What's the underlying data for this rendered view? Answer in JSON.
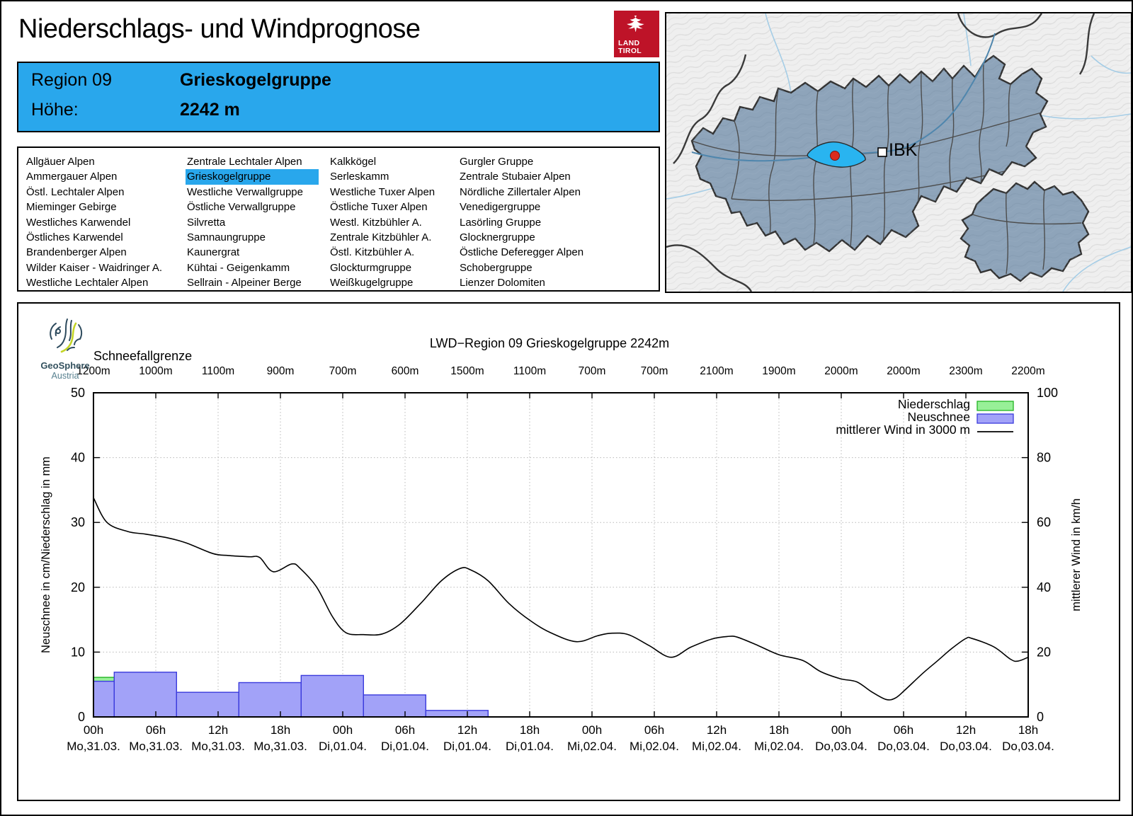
{
  "header": {
    "title": "Niederschlags- und Windprognose"
  },
  "logo": {
    "line1": "LAND",
    "line2": "TIROL"
  },
  "region_box": {
    "region_label": "Region 09",
    "region_name": "Grieskogelgruppe",
    "altitude_label": "Höhe:",
    "altitude_value": "2242 m"
  },
  "region_list": {
    "selected": "Grieskogelgruppe",
    "columns": [
      [
        "Allgäuer Alpen",
        "Ammergauer Alpen",
        "Östl. Lechtaler Alpen",
        "Mieminger Gebirge",
        "Westliches Karwendel",
        "Östliches Karwendel",
        "Brandenberger Alpen",
        "Wilder Kaiser - Waidringer A.",
        "Westliche Lechtaler Alpen"
      ],
      [
        "Zentrale Lechtaler Alpen",
        "Grieskogelgruppe",
        "Westliche Verwallgruppe",
        "Östliche Verwallgruppe",
        "Silvretta",
        "Samnaungruppe",
        "Kaunergrat",
        "Kühtai - Geigenkamm",
        "Sellrain - Alpeiner Berge"
      ],
      [
        "Kalkkögel",
        "Serleskamm",
        "Westliche Tuxer Alpen",
        "Östliche Tuxer Alpen",
        "Westl. Kitzbühler A.",
        "Zentrale Kitzbühler A.",
        "Östl. Kitzbühler A.",
        "Glockturmgruppe",
        "Weißkugelgruppe"
      ],
      [
        "Gurgler Gruppe",
        "Zentrale Stubaier Alpen",
        "Nördliche Zillertaler Alpen",
        "Venedigergruppe",
        "Lasörling Gruppe",
        "Glocknergruppe",
        "Östliche Deferegger Alpen",
        "Schobergruppe",
        "Lienzer Dolomiten"
      ]
    ]
  },
  "map": {
    "city_label": "IBK"
  },
  "geosphere": {
    "name": "GeoSphere",
    "country": "Austria"
  },
  "chart_data": {
    "type": "bar",
    "title": "LWD−Region 09 Grieskogelgruppe 2242m",
    "snowline": {
      "label": "Schneefallgrenze",
      "values": [
        "1200m",
        "1000m",
        "1100m",
        "900m",
        "700m",
        "600m",
        "1500m",
        "1100m",
        "700m",
        "700m",
        "2100m",
        "1900m",
        "2000m",
        "2000m",
        "2300m",
        "2200m"
      ]
    },
    "axes": {
      "left_label": "Neuschnee in cm/Niederschlag in mm",
      "right_label": "mittlerer Wind in km/h",
      "left_ticks": [
        0,
        10,
        20,
        30,
        40,
        50
      ],
      "right_ticks": [
        0,
        20,
        40,
        60,
        80,
        100
      ],
      "ylim_left": [
        0,
        50
      ],
      "ylim_right": [
        0,
        100
      ],
      "x_hours_total": 90,
      "grid": "dotted"
    },
    "xticks": [
      {
        "time": "00h",
        "date": "Mo,31.03."
      },
      {
        "time": "06h",
        "date": "Mo,31.03."
      },
      {
        "time": "12h",
        "date": "Mo,31.03."
      },
      {
        "time": "18h",
        "date": "Mo,31.03."
      },
      {
        "time": "00h",
        "date": "Di,01.04."
      },
      {
        "time": "06h",
        "date": "Di,01.04."
      },
      {
        "time": "12h",
        "date": "Di,01.04."
      },
      {
        "time": "18h",
        "date": "Di,01.04."
      },
      {
        "time": "00h",
        "date": "Mi,02.04."
      },
      {
        "time": "06h",
        "date": "Mi,02.04."
      },
      {
        "time": "12h",
        "date": "Mi,02.04."
      },
      {
        "time": "18h",
        "date": "Mi,02.04."
      },
      {
        "time": "00h",
        "date": "Do,03.04."
      },
      {
        "time": "06h",
        "date": "Do,03.04."
      },
      {
        "time": "12h",
        "date": "Do,03.04."
      },
      {
        "time": "18h",
        "date": "Do,03.04."
      }
    ],
    "legend": [
      {
        "label": "Niederschlag",
        "type": "box",
        "fill": "#98f098",
        "border": "#22b422"
      },
      {
        "label": "Neuschnee",
        "type": "box",
        "fill": "#a2a2f8",
        "border": "#3b3bdc"
      },
      {
        "label": "mittlerer Wind in 3000 m",
        "type": "line",
        "color": "#000000"
      }
    ],
    "niederschlag_bars_mm": [
      {
        "from_h": 0,
        "to_h": 2,
        "value": 6.1
      }
    ],
    "neuschnee_bars_cm": [
      {
        "from_h": 0,
        "to_h": 2,
        "value": 5.5
      },
      {
        "from_h": 2,
        "to_h": 8,
        "value": 6.9
      },
      {
        "from_h": 8,
        "to_h": 14,
        "value": 3.8
      },
      {
        "from_h": 14,
        "to_h": 20,
        "value": 5.3
      },
      {
        "from_h": 20,
        "to_h": 26,
        "value": 6.4
      },
      {
        "from_h": 26,
        "to_h": 32,
        "value": 3.4
      },
      {
        "from_h": 32,
        "to_h": 38,
        "value": 1.0
      }
    ],
    "wind_series": {
      "name": "mittlerer Wind in 3000 m",
      "unit": "km/h",
      "points": [
        [
          0,
          67.6
        ],
        [
          1.3,
          60.0
        ],
        [
          3.3,
          57.2
        ],
        [
          5,
          56.4
        ],
        [
          7.2,
          55.2
        ],
        [
          9,
          53.6
        ],
        [
          11.5,
          50.4
        ],
        [
          13,
          49.8
        ],
        [
          15,
          49.4
        ],
        [
          16,
          49.2
        ],
        [
          17.3,
          44.8
        ],
        [
          19.1,
          47.2
        ],
        [
          19.9,
          45.8
        ],
        [
          21.5,
          40.0
        ],
        [
          23,
          31.0
        ],
        [
          24.3,
          26.0
        ],
        [
          26,
          25.4
        ],
        [
          27.8,
          25.6
        ],
        [
          29.5,
          28.6
        ],
        [
          31.5,
          35.0
        ],
        [
          33.5,
          42.0
        ],
        [
          35.3,
          45.8
        ],
        [
          36.3,
          45.4
        ],
        [
          38,
          42.0
        ],
        [
          40,
          35.0
        ],
        [
          42.1,
          29.6
        ],
        [
          44,
          26.0
        ],
        [
          46.5,
          23.2
        ],
        [
          48.5,
          25.0
        ],
        [
          49.8,
          25.8
        ],
        [
          51.5,
          25.4
        ],
        [
          53.5,
          22.0
        ],
        [
          55.6,
          18.4
        ],
        [
          57.5,
          21.5
        ],
        [
          59.5,
          24.0
        ],
        [
          61,
          24.8
        ],
        [
          62,
          24.6
        ],
        [
          64,
          22.0
        ],
        [
          66,
          19.2
        ],
        [
          68.3,
          17.4
        ],
        [
          70,
          14.0
        ],
        [
          71.9,
          11.8
        ],
        [
          73.5,
          10.8
        ],
        [
          74.9,
          7.8
        ],
        [
          76.3,
          5.4
        ],
        [
          77.2,
          5.8
        ],
        [
          78.1,
          8.2
        ],
        [
          79.9,
          13.6
        ],
        [
          81.3,
          17.4
        ],
        [
          82.6,
          21.0
        ],
        [
          84,
          24.2
        ],
        [
          84.6,
          24.2
        ],
        [
          86.7,
          21.6
        ],
        [
          88.3,
          17.8
        ],
        [
          89,
          17.2
        ],
        [
          90,
          18.4
        ]
      ]
    }
  },
  "colors": {
    "accent_blue": "#29a7ec",
    "map_highlight": "#29b4f0",
    "map_region": "#8ea4ba",
    "bar_blue_fill": "#a2a2f8",
    "bar_blue_border": "#3b3bdc",
    "bar_green_fill": "#98f098",
    "bar_green_border": "#22b422",
    "logo_red": "#be1328",
    "grid": "#b8b8b8",
    "marker_red": "#db2b1f"
  }
}
